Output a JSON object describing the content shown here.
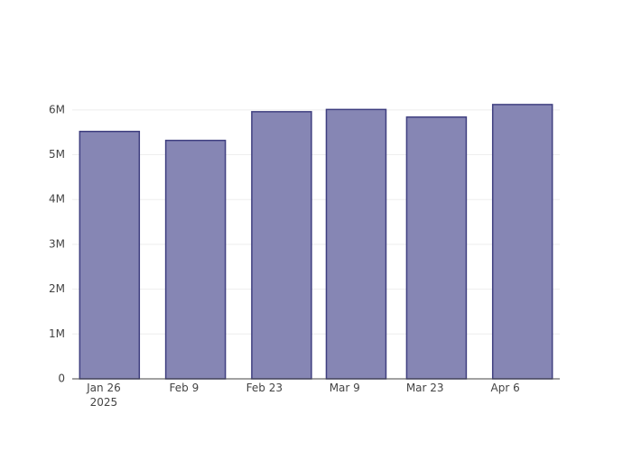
{
  "chart_data": {
    "type": "bar",
    "x": [
      "2025-01-27",
      "2025-02-11",
      "2025-02-26",
      "2025-03-11",
      "2025-03-25",
      "2025-04-09"
    ],
    "values": [
      5520000,
      5320000,
      5960000,
      6010000,
      5840000,
      6120000
    ],
    "color": "#7f7fb0",
    "xlim": [
      "2025-01-20T12:00",
      "2025-04-15T12:00"
    ],
    "xticks": [
      {
        "value": "2025-01-26",
        "label": [
          "Jan 26",
          "2025"
        ]
      },
      {
        "value": "2025-02-09",
        "label": [
          "Feb 9"
        ]
      },
      {
        "value": "2025-02-23",
        "label": [
          "Feb 23"
        ]
      },
      {
        "value": "2025-03-09",
        "label": [
          "Mar 9"
        ]
      },
      {
        "value": "2025-03-23",
        "label": [
          "Mar 23"
        ]
      },
      {
        "value": "2025-04-06",
        "label": [
          "Apr 6"
        ]
      }
    ],
    "ylim": [
      0,
      6440000
    ],
    "yticks": [
      0,
      {
        "value": 1000000,
        "label": "1M"
      },
      {
        "value": 2000000,
        "label": "2M"
      },
      {
        "value": 3000000,
        "label": "3M"
      },
      {
        "value": 4000000,
        "label": "4M"
      },
      {
        "value": 5000000,
        "label": "5M"
      },
      {
        "value": 6000000,
        "label": "6M"
      }
    ],
    "grid": true
  }
}
